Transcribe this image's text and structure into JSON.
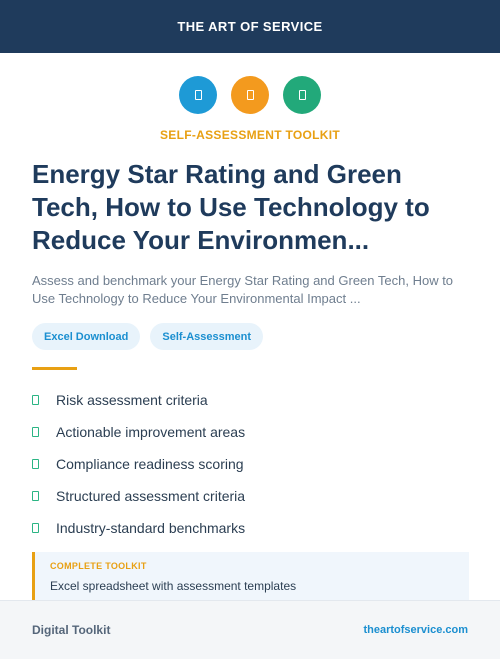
{
  "header": {
    "brand": "THE ART OF SERVICE"
  },
  "icons": [
    {
      "name": "document-icon",
      "color": "#1e9ad6"
    },
    {
      "name": "document-icon",
      "color": "#f39a1e"
    },
    {
      "name": "document-icon",
      "color": "#22a97a"
    }
  ],
  "kicker": "SELF-ASSESSMENT TOOLKIT",
  "title": "Energy Star Rating and Green Tech, How to Use Technology to Reduce Your Environmen...",
  "subtitle": "Assess and benchmark your Energy Star Rating and Green Tech, How to Use Technology to Reduce Your Environmental Impact ...",
  "tags": [
    "Excel Download",
    "Self-Assessment"
  ],
  "features": [
    "Risk assessment criteria",
    "Actionable improvement areas",
    "Compliance readiness scoring",
    "Structured assessment criteria",
    "Industry-standard benchmarks"
  ],
  "callout": {
    "head": "COMPLETE TOOLKIT",
    "text": "Excel spreadsheet with assessment templates"
  },
  "footer": {
    "left": "Digital Toolkit",
    "right": "theartofservice.com"
  }
}
